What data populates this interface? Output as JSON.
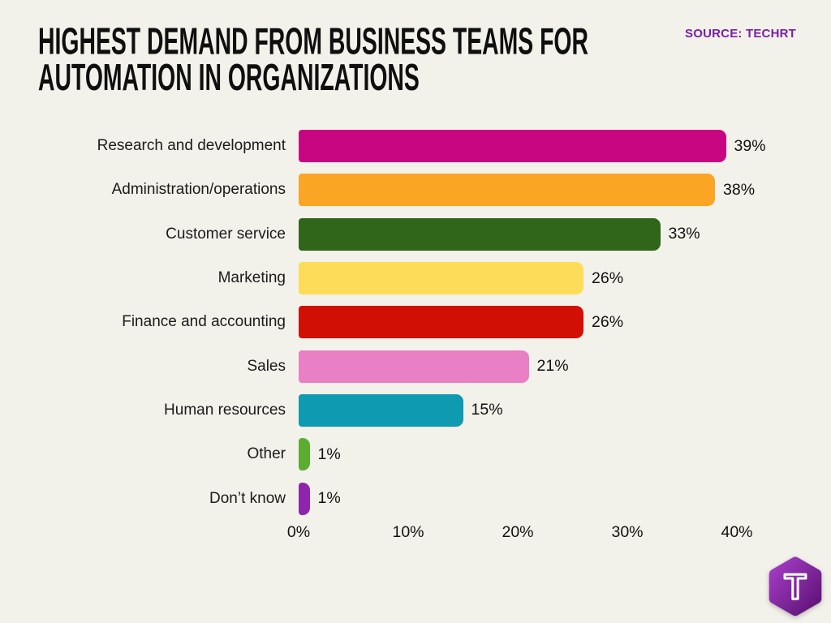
{
  "header": {
    "title": "HIGHEST DEMAND FROM BUSINESS TEAMS FOR AUTOMATION IN ORGANIZATIONS",
    "source_label": "SOURCE: TECHRT"
  },
  "colors": {
    "background": "#F2F1EA",
    "title_text": "#0F0F0F",
    "source_text": "#7B1FA2",
    "category_label_text": "#1B1B1B",
    "value_label_text": "#111111",
    "logo_gradient_start": "#A43CC4",
    "logo_gradient_end": "#5E1377"
  },
  "chart_data": {
    "type": "bar",
    "orientation": "horizontal",
    "title": "HIGHEST DEMAND FROM BUSINESS TEAMS FOR AUTOMATION IN ORGANIZATIONS",
    "categories": [
      "Research and development",
      "Administration/operations",
      "Customer service",
      "Marketing",
      "Finance and accounting",
      "Sales",
      "Human resources",
      "Other",
      "Don’t know"
    ],
    "values": [
      39,
      38,
      33,
      26,
      26,
      21,
      15,
      1,
      1
    ],
    "value_labels": [
      "39%",
      "38%",
      "33%",
      "26%",
      "26%",
      "21%",
      "15%",
      "1%",
      "1%"
    ],
    "bar_colors": [
      "#C90682",
      "#FBA524",
      "#2F6619",
      "#FDDC5A",
      "#D20F04",
      "#E97FC5",
      "#0E9AB1",
      "#5BAD31",
      "#8F25AC"
    ],
    "x_ticks": [
      "0%",
      "10%",
      "20%",
      "30%",
      "40%"
    ],
    "xlabel": "",
    "ylabel": "",
    "xlim": [
      0,
      40
    ],
    "grid": false,
    "legend": false
  },
  "logo": {
    "letter": "T"
  }
}
